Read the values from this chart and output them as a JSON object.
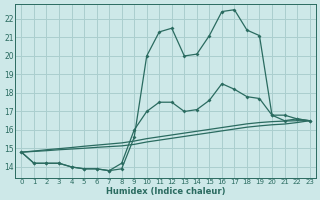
{
  "xlabel": "Humidex (Indice chaleur)",
  "bg_color": "#cde8e8",
  "grid_color": "#aacece",
  "line_color": "#2a6b60",
  "xlim": [
    -0.5,
    23.5
  ],
  "ylim": [
    13.4,
    22.8
  ],
  "xticks": [
    0,
    1,
    2,
    3,
    4,
    5,
    6,
    7,
    8,
    9,
    10,
    11,
    12,
    13,
    14,
    15,
    16,
    17,
    18,
    19,
    20,
    21,
    22,
    23
  ],
  "yticks": [
    14,
    15,
    16,
    17,
    18,
    19,
    20,
    21,
    22
  ],
  "line1_y": [
    14.8,
    14.2,
    14.2,
    14.2,
    14.0,
    13.9,
    13.9,
    13.8,
    13.9,
    15.6,
    20.0,
    21.3,
    21.5,
    20.0,
    20.1,
    21.1,
    22.4,
    22.5,
    21.4,
    21.1,
    16.8,
    16.8,
    16.6,
    16.5
  ],
  "line2_y": [
    14.8,
    14.2,
    14.2,
    14.2,
    14.0,
    13.9,
    13.9,
    13.8,
    14.2,
    16.0,
    17.0,
    17.5,
    17.5,
    17.0,
    17.1,
    17.6,
    18.5,
    18.2,
    17.8,
    17.7,
    16.8,
    16.5,
    16.6,
    16.5
  ],
  "line3_y": [
    14.8,
    14.86,
    14.93,
    14.99,
    15.05,
    15.12,
    15.18,
    15.24,
    15.3,
    15.4,
    15.53,
    15.63,
    15.73,
    15.83,
    15.93,
    16.03,
    16.13,
    16.23,
    16.33,
    16.4,
    16.45,
    16.48,
    16.5,
    16.5
  ],
  "line4_y": [
    14.8,
    14.84,
    14.88,
    14.93,
    14.97,
    15.01,
    15.06,
    15.1,
    15.14,
    15.22,
    15.35,
    15.45,
    15.55,
    15.65,
    15.75,
    15.85,
    15.95,
    16.05,
    16.15,
    16.22,
    16.28,
    16.32,
    16.4,
    16.5
  ]
}
